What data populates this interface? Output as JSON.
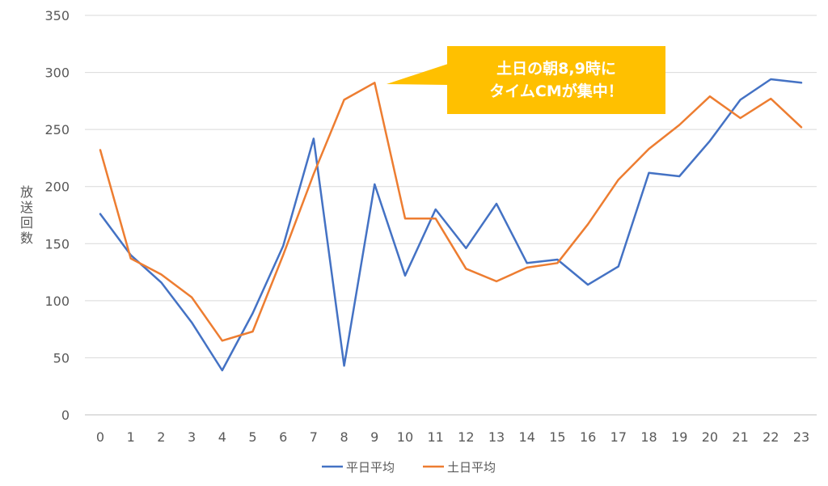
{
  "chart_data": {
    "type": "line",
    "title": "",
    "xlabel": "",
    "ylabel": "放送回数",
    "categories": [
      "0",
      "1",
      "2",
      "3",
      "4",
      "5",
      "6",
      "7",
      "8",
      "9",
      "10",
      "11",
      "12",
      "13",
      "14",
      "15",
      "16",
      "17",
      "18",
      "19",
      "20",
      "21",
      "22",
      "23"
    ],
    "ylim": [
      0,
      350
    ],
    "yticks": [
      0,
      50,
      100,
      150,
      200,
      250,
      300,
      350
    ],
    "grid": true,
    "legend_position": "bottom",
    "series": [
      {
        "name": "平日平均",
        "color": "#4472C4",
        "values": [
          176,
          140,
          116,
          81,
          39,
          89,
          148,
          242,
          43,
          202,
          122,
          180,
          146,
          185,
          133,
          136,
          114,
          130,
          212,
          209,
          240,
          276,
          294,
          291
        ]
      },
      {
        "name": "土日平均",
        "color": "#ED7D31",
        "values": [
          232,
          137,
          123,
          103,
          65,
          73,
          140,
          211,
          276,
          291,
          172,
          172,
          128,
          117,
          129,
          133,
          167,
          206,
          233,
          254,
          279,
          260,
          277,
          252
        ]
      }
    ],
    "annotation": {
      "lines": [
        "土日の朝8,9時に",
        "タイムCMが集中！"
      ],
      "color": "#FFC000",
      "points_to": {
        "series": "土日平均",
        "x": "9",
        "y": 291
      }
    }
  }
}
